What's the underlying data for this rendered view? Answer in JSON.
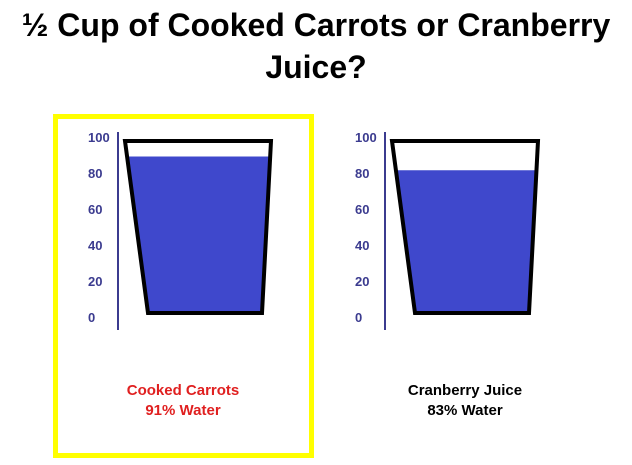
{
  "title": {
    "line1": "½ Cup of Cooked Carrots or Cranberry",
    "line2": "Juice?"
  },
  "colors": {
    "water": "#3f48cc",
    "axis": "#3b3b8f",
    "highlight": "#ffff00",
    "carrots_caption": "#e02020",
    "juice_caption": "#000000"
  },
  "chart_data": [
    {
      "type": "bar",
      "categories": [
        "Cooked Carrots"
      ],
      "values": [
        91
      ],
      "ylim": [
        0,
        100
      ],
      "yticks": [
        "100",
        "80",
        "60",
        "40",
        "20",
        "0"
      ],
      "caption": {
        "name": "Cooked Carrots",
        "value_label": "91% Water"
      },
      "highlighted": true
    },
    {
      "type": "bar",
      "categories": [
        "Cranberry Juice"
      ],
      "values": [
        83
      ],
      "ylim": [
        0,
        100
      ],
      "yticks": [
        "100",
        "80",
        "60",
        "40",
        "20",
        "0"
      ],
      "caption": {
        "name": "Cranberry Juice",
        "value_label": "83% Water"
      },
      "highlighted": false
    }
  ]
}
